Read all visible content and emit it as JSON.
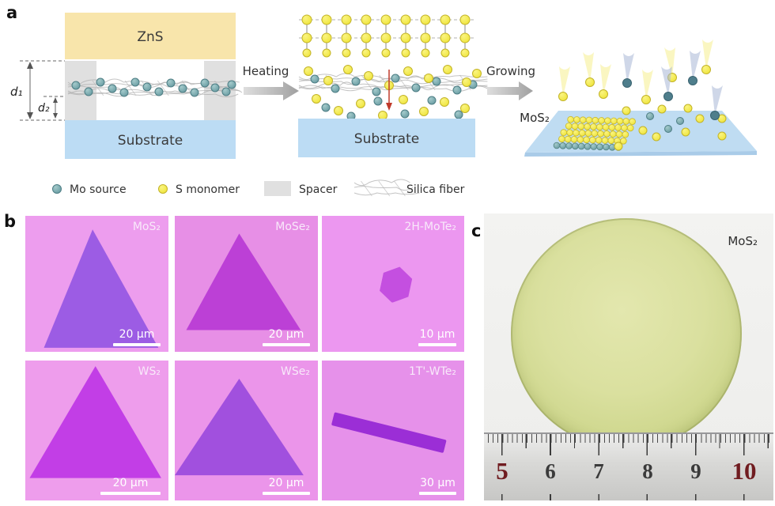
{
  "panel_labels": {
    "a": "a",
    "b": "b",
    "c": "c"
  },
  "schematic": {
    "zns_label": "ZnS",
    "substrate_left_label": "Substrate",
    "substrate_middle_label": "Substrate",
    "d1_label": "d₁",
    "d2_label": "d₂",
    "heating_label": "Heating",
    "growing_label": "Growing",
    "product_label": "MoS₂",
    "legend": {
      "mo_source": "Mo source",
      "s_monomer": "S monomer",
      "spacer": "Spacer",
      "silica_fiber": "Silica fiber"
    }
  },
  "micrographs": {
    "tiles": [
      {
        "material": "MoS₂",
        "scale_bar": "20 µm"
      },
      {
        "material": "MoSe₂",
        "scale_bar": "20 µm"
      },
      {
        "material": "2H-MoTe₂",
        "scale_bar": "10 µm"
      },
      {
        "material": "WS₂",
        "scale_bar": "20 µm"
      },
      {
        "material": "WSe₂",
        "scale_bar": "20 µm"
      },
      {
        "material": "1T'-WTe₂",
        "scale_bar": "30 µm"
      }
    ]
  },
  "photo": {
    "sample_label": "MoS₂",
    "ruler_numbers": [
      "5",
      "6",
      "7",
      "8",
      "9",
      "10"
    ]
  },
  "colors": {
    "zns": "#F8E5AB",
    "substrate": "#BCDCF4",
    "spacer": "#E0E0E0",
    "mo_source": "#5E949B",
    "s_monomer": "#F2E93C",
    "wafer": "#D6DC96",
    "ruler_red": "#701C20"
  }
}
